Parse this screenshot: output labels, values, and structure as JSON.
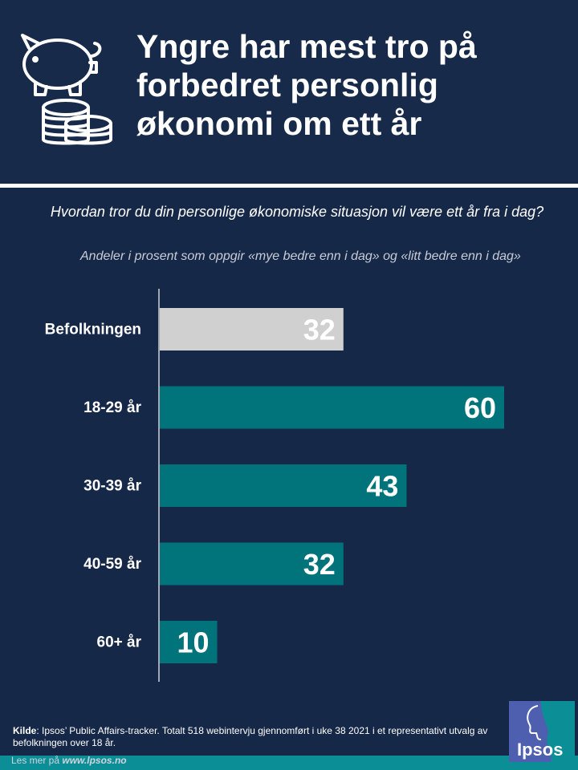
{
  "header": {
    "title_lines": [
      "Yngre har mest tro på",
      "forbedret personlig",
      "økonomi om ett år"
    ],
    "icon": "piggy-bank-coins-icon"
  },
  "question": "Hvordan tror du din personlige økonomiske situasjon vil være ett år fra i dag?",
  "subtitle": "Andeler i prosent som oppgir «mye bedre enn i dag» og «litt bedre enn i dag»",
  "chart_data": {
    "type": "bar",
    "orientation": "horizontal",
    "categories": [
      "Befolkningen",
      "18-29 år",
      "30-39 år",
      "40-59 år",
      "60+ år"
    ],
    "values": [
      32,
      60,
      43,
      32,
      10
    ],
    "bar_colors": [
      "#d0d0d0",
      "#00737b",
      "#00737b",
      "#00737b",
      "#00737b"
    ],
    "value_labels": true,
    "grid": false
  },
  "footer": {
    "source_label": "Kilde",
    "source_text": ": Ipsos’ Public Affairs-tracker. Totalt 518 webintervju gjennomført i uke 38 2021 i et representativt utvalg av befolkningen over 18 år.",
    "more_prefix": "Les mer på ",
    "more_link": "www.lpsos.no"
  },
  "logo": {
    "text": "Ipsos",
    "icon": "ipsos-logo-icon"
  },
  "colors": {
    "background": "#162847",
    "accent": "#00737b",
    "population_bar": "#d0d0d0",
    "strip": "#0b8e95",
    "logo_bg": "#4e5fb0"
  }
}
